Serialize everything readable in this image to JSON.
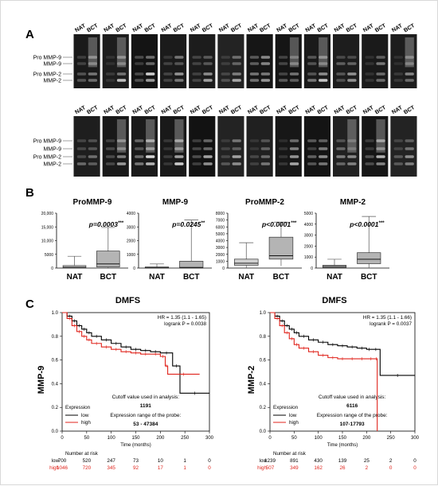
{
  "panel_a": {
    "letter": "A",
    "lane_labels": [
      "NAT",
      "BCT"
    ],
    "band_labels": [
      "Pro MMP-9",
      "MMP-9",
      "Pro MMP-2",
      "MMP-2"
    ]
  },
  "panel_b": {
    "letter": "B",
    "group_labels": [
      "NAT",
      "BCT"
    ],
    "charts": [
      {
        "title": "ProMMP-9",
        "pvalue": "p=0.0003",
        "stars": "***",
        "ticks": [
          "0",
          "5000",
          "10,000",
          "15,000",
          "20,000"
        ]
      },
      {
        "title": "MMP-9",
        "pvalue": "p=0.0245",
        "stars": "**",
        "ticks": [
          "0",
          "1000",
          "2000",
          "3000",
          "4000"
        ]
      },
      {
        "title": "ProMMP-2",
        "pvalue": "p<0.0001",
        "stars": "***",
        "ticks": [
          "0",
          "1000",
          "2000",
          "3000",
          "4000",
          "5000",
          "6000",
          "7000",
          "8000"
        ]
      },
      {
        "title": "MMP-2",
        "pvalue": "p<0.0001",
        "stars": "***",
        "ticks": [
          "0",
          "1000",
          "2000",
          "3000",
          "4000",
          "5000"
        ]
      }
    ]
  },
  "panel_c": {
    "letter": "C",
    "plots": [
      {
        "title": "DMFS",
        "ylabel": "MMP-9",
        "hr": "HR = 1.35 (1.1 - 1.65)",
        "logrank": "logrank P = 0.0038",
        "cutoff_label": "Cutoff value used in analysis:",
        "cutoff": "1191",
        "range_label": "Expression range of the probe:",
        "range": "53 - 47384",
        "risk_low": [
          "700",
          "520",
          "247",
          "73",
          "10",
          "1",
          "0"
        ],
        "risk_high": [
          "1046",
          "720",
          "345",
          "92",
          "17",
          "1",
          "0"
        ]
      },
      {
        "title": "DMFS",
        "ylabel": "MMP-2",
        "hr": "HR = 1.35 (1.1 - 1.66)",
        "logrank": "logrank P = 0.0037",
        "cutoff_label": "Cutoff value used in analysis:",
        "cutoff": "6116",
        "range_label": "Expression range of the probe:",
        "range": "107-17793",
        "risk_low": [
          "1239",
          "891",
          "430",
          "139",
          "25",
          "2",
          "0"
        ],
        "risk_high": [
          "507",
          "349",
          "162",
          "26",
          "2",
          "0",
          "0"
        ]
      }
    ],
    "xlabel": "Time (months)",
    "xticks": [
      "0",
      "50",
      "100",
      "150",
      "200",
      "250",
      "300"
    ],
    "yticks": [
      "0.0",
      "0.2",
      "0.4",
      "0.6",
      "0.8",
      "1.0"
    ],
    "legend_title": "Expression",
    "legend_low": "low",
    "legend_high": "high",
    "risk_title": "Number at risk",
    "colors": {
      "low": "#000000",
      "high": "#e0231b"
    }
  },
  "chart_data": [
    {
      "type": "box",
      "title": "ProMMP-9",
      "categories": [
        "NAT",
        "BCT"
      ],
      "ylim": [
        0,
        20000
      ],
      "boxes": [
        {
          "min": 0,
          "q1": 0,
          "median": 300,
          "q3": 900,
          "max": 4300
        },
        {
          "min": 0,
          "q1": 400,
          "median": 1500,
          "q3": 6200,
          "max": 14800
        }
      ]
    },
    {
      "type": "box",
      "title": "MMP-9",
      "categories": [
        "NAT",
        "BCT"
      ],
      "ylim": [
        0,
        4000
      ],
      "boxes": [
        {
          "min": 0,
          "q1": 0,
          "median": 20,
          "q3": 80,
          "max": 300
        },
        {
          "min": 0,
          "q1": 0,
          "median": 50,
          "q3": 500,
          "max": 3500
        }
      ]
    },
    {
      "type": "box",
      "title": "ProMMP-2",
      "categories": [
        "NAT",
        "BCT"
      ],
      "ylim": [
        0,
        8000
      ],
      "boxes": [
        {
          "min": 0,
          "q1": 400,
          "median": 700,
          "q3": 1300,
          "max": 3700
        },
        {
          "min": 300,
          "q1": 1300,
          "median": 1800,
          "q3": 4500,
          "max": 6700
        }
      ]
    },
    {
      "type": "box",
      "title": "MMP-2",
      "categories": [
        "NAT",
        "BCT"
      ],
      "ylim": [
        0,
        5000
      ],
      "boxes": [
        {
          "min": 0,
          "q1": 50,
          "median": 150,
          "q3": 250,
          "max": 800
        },
        {
          "min": 0,
          "q1": 400,
          "median": 800,
          "q3": 1400,
          "max": 4700
        }
      ]
    },
    {
      "type": "line",
      "title": "DMFS",
      "ylabel": "MMP-9",
      "xlabel": "Time (months)",
      "xlim": [
        0,
        300
      ],
      "ylim": [
        0,
        1
      ],
      "series": [
        {
          "name": "low",
          "x": [
            0,
            10,
            20,
            30,
            40,
            50,
            60,
            80,
            100,
            120,
            140,
            160,
            180,
            200,
            225,
            240,
            300
          ],
          "y": [
            1,
            0.97,
            0.93,
            0.89,
            0.86,
            0.83,
            0.8,
            0.77,
            0.74,
            0.71,
            0.69,
            0.68,
            0.67,
            0.66,
            0.55,
            0.32,
            0.32
          ]
        },
        {
          "name": "high",
          "x": [
            0,
            10,
            20,
            30,
            40,
            50,
            60,
            80,
            100,
            120,
            140,
            160,
            180,
            200,
            210,
            215,
            280
          ],
          "y": [
            1,
            0.95,
            0.89,
            0.84,
            0.8,
            0.77,
            0.74,
            0.71,
            0.69,
            0.67,
            0.66,
            0.65,
            0.65,
            0.63,
            0.55,
            0.48,
            0.48
          ]
        }
      ]
    },
    {
      "type": "line",
      "title": "DMFS",
      "ylabel": "MMP-2",
      "xlabel": "Time (months)",
      "xlim": [
        0,
        300
      ],
      "ylim": [
        0,
        1
      ],
      "series": [
        {
          "name": "low",
          "x": [
            0,
            10,
            20,
            30,
            40,
            50,
            60,
            80,
            100,
            120,
            140,
            160,
            180,
            200,
            210,
            228,
            300
          ],
          "y": [
            1,
            0.97,
            0.93,
            0.89,
            0.86,
            0.83,
            0.8,
            0.77,
            0.75,
            0.73,
            0.72,
            0.71,
            0.7,
            0.69,
            0.69,
            0.47,
            0.47
          ]
        },
        {
          "name": "high",
          "x": [
            0,
            10,
            20,
            30,
            40,
            50,
            60,
            80,
            100,
            120,
            140,
            160,
            180,
            200,
            218,
            222
          ],
          "y": [
            1,
            0.95,
            0.89,
            0.83,
            0.78,
            0.73,
            0.7,
            0.67,
            0.64,
            0.62,
            0.61,
            0.61,
            0.61,
            0.61,
            0.61,
            0
          ]
        }
      ]
    }
  ]
}
